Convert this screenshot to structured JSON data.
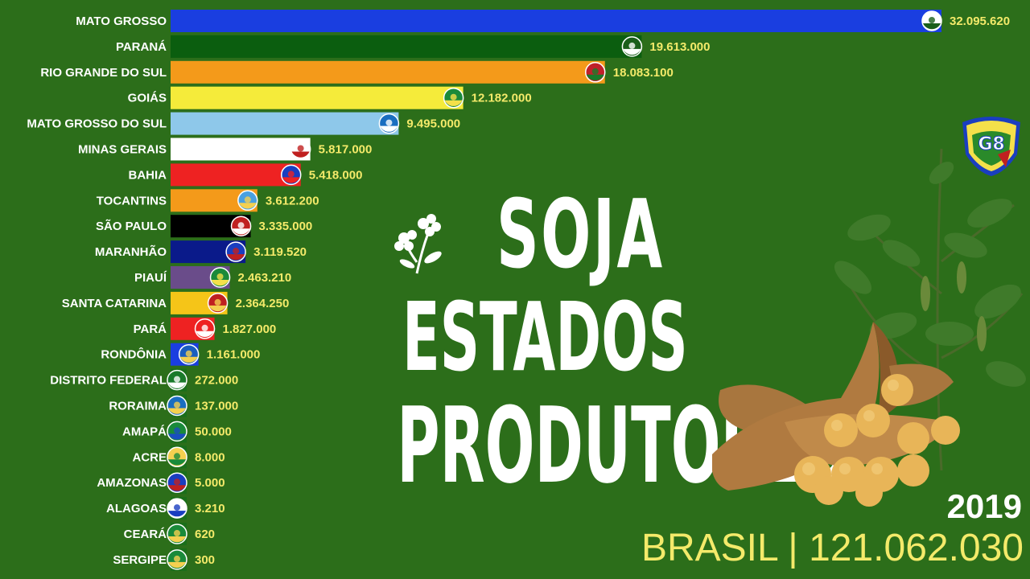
{
  "chart_data": {
    "type": "bar",
    "orientation": "horizontal",
    "categories": [
      "MATO GROSSO",
      "PARANÁ",
      "RIO GRANDE DO SUL",
      "GOIÁS",
      "MATO GROSSO DO SUL",
      "MINAS GERAIS",
      "BAHIA",
      "TOCANTINS",
      "SÃO PAULO",
      "MARANHÃO",
      "PIAUÍ",
      "SANTA CATARINA",
      "PARÁ",
      "RONDÔNIA",
      "DISTRITO FEDERAL",
      "RORAIMA",
      "AMAPÁ",
      "ACRE",
      "AMAZONAS",
      "ALAGOAS",
      "CEARÁ",
      "SERGIPE"
    ],
    "values": [
      32095620,
      19613000,
      18083100,
      12182000,
      9495000,
      5817000,
      5418000,
      3612200,
      3335000,
      3119520,
      2463210,
      2364250,
      1827000,
      1161000,
      272000,
      137000,
      50000,
      8000,
      5000,
      3210,
      620,
      300
    ],
    "value_labels": [
      "32.095.620",
      "19.613.000",
      "18.083.100",
      "12.182.000",
      "9.495.000",
      "5.817.000",
      "5.418.000",
      "3.612.200",
      "3.335.000",
      "3.119.520",
      "2.463.210",
      "2.364.250",
      "1.827.000",
      "1.161.000",
      "272.000",
      "137.000",
      "50.000",
      "8.000",
      "5.000",
      "3.210",
      "620",
      "300"
    ],
    "bar_colors": [
      "#1a3ee0",
      "#0b5e0f",
      "#f49a1a",
      "#f5eb3a",
      "#8ec8ea",
      "#ffffff",
      "#ee2222",
      "#f49a1a",
      "#000000",
      "#0a1a8a",
      "#6a4c8a",
      "#f5c518",
      "#ee2222",
      "#1a3ee0",
      "#1a6e1a",
      "#1a6e1a",
      "#1a6e1a",
      "#1a6e1a",
      "#1a6e1a",
      "#1a6e1a",
      "#1a6e1a",
      "#1a6e1a"
    ],
    "flag_colors": [
      [
        "#ffffff",
        "#1a5e1a"
      ],
      [
        "#1a5e1a",
        "#ffffff"
      ],
      [
        "#c0202a",
        "#1a7a2a"
      ],
      [
        "#1a8a3a",
        "#f4e04a"
      ],
      [
        "#1a6ec0",
        "#ffffff"
      ],
      [
        "#ffffff",
        "#c02020"
      ],
      [
        "#1a3ec0",
        "#ee2222"
      ],
      [
        "#4aa0e0",
        "#f4d050"
      ],
      [
        "#c02020",
        "#ffffff"
      ],
      [
        "#1a3ec0",
        "#c02020"
      ],
      [
        "#1a8a3a",
        "#f4e04a"
      ],
      [
        "#c02020",
        "#f4d050"
      ],
      [
        "#ee2222",
        "#ffffff"
      ],
      [
        "#1a5ec0",
        "#f4d050"
      ],
      [
        "#1a7a2a",
        "#ffffff"
      ],
      [
        "#1a6ec0",
        "#f4d050"
      ],
      [
        "#1a8a3a",
        "#1a4ec0"
      ],
      [
        "#f4d050",
        "#1a8a3a"
      ],
      [
        "#1a3ec0",
        "#c02020"
      ],
      [
        "#ffffff",
        "#1a3ec0"
      ],
      [
        "#1a8a3a",
        "#f4d050"
      ],
      [
        "#1a8a3a",
        "#f4d050"
      ]
    ],
    "xlim": [
      0,
      32095620
    ],
    "year": "2019",
    "total_text": "BRASIL | 121.062.030"
  },
  "title": {
    "line1": "SOJA",
    "line2": "ESTADOS",
    "line3": "PRODUTORES"
  },
  "badge_text": "G8",
  "colors": {
    "background": "#2c6e1a",
    "label": "#ffffff",
    "value": "#f4ea6a"
  }
}
